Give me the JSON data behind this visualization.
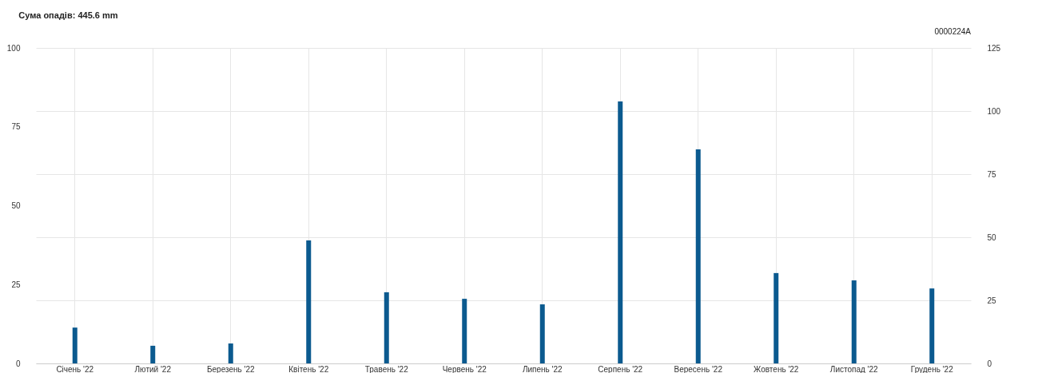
{
  "chart_data": {
    "type": "bar",
    "title": "Сума опадів: 445.6 mm",
    "annotations": [
      "0000224A"
    ],
    "categories": [
      "Січень '22",
      "Лютий '22",
      "Березень '22",
      "Квітень '22",
      "Травень '22",
      "Червень '22",
      "Липень '22",
      "Серпень '22",
      "Вересень '22",
      "Жовтень '22",
      "Листопад '22",
      "Грудень '22"
    ],
    "ylim": [
      0,
      100
    ],
    "yticks": [
      0,
      25,
      50,
      75,
      100
    ],
    "y2lim": [
      0,
      125
    ],
    "y2ticks": [
      0,
      25,
      50,
      75,
      100,
      125
    ],
    "grid": true,
    "series": [
      {
        "color": "#0b5a8f",
        "axis": "y2",
        "values": [
          14.2,
          7.0,
          7.9,
          48.7,
          28.2,
          25.6,
          23.4,
          103.8,
          84.8,
          35.8,
          32.9,
          29.7
        ]
      }
    ]
  }
}
